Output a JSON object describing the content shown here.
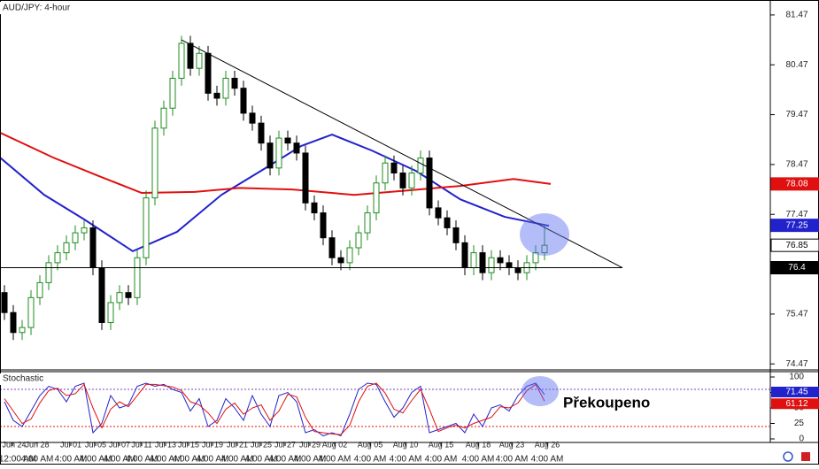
{
  "chart_data": {
    "type": "candlestick",
    "title": "AUD/JPY: 4-hour",
    "open": [
      75.9,
      75.5,
      75.1,
      75.2,
      75.8,
      76.1,
      76.5,
      76.7,
      76.9,
      77.1,
      77.2,
      76.4,
      75.3,
      75.7,
      75.9,
      75.8,
      76.6,
      77.8,
      79.2,
      79.6,
      80.2,
      80.9,
      80.4,
      80.7,
      79.9,
      79.8,
      80.2,
      80.0,
      79.5,
      79.3,
      78.9,
      78.4,
      79.0,
      78.9,
      78.7,
      77.7,
      77.5,
      77.0,
      76.6,
      76.5,
      76.8,
      77.1,
      77.5,
      78.1,
      78.5,
      78.3,
      78.0,
      78.3,
      78.6,
      77.6,
      77.4,
      77.2,
      76.9,
      76.4,
      76.7,
      76.3,
      76.6,
      76.5,
      76.4,
      76.3,
      76.5,
      76.7
    ],
    "high": [
      76.05,
      75.65,
      75.35,
      75.95,
      76.25,
      76.65,
      76.85,
      77.05,
      77.25,
      77.35,
      77.35,
      76.55,
      75.85,
      76.05,
      76.05,
      76.75,
      77.95,
      79.35,
      79.75,
      80.35,
      81.05,
      81.05,
      80.85,
      80.85,
      80.05,
      80.35,
      80.35,
      80.15,
      79.65,
      79.45,
      79.05,
      79.15,
      79.15,
      79.05,
      78.85,
      77.85,
      77.65,
      77.15,
      76.75,
      76.95,
      77.25,
      77.65,
      78.25,
      78.65,
      78.65,
      78.45,
      78.45,
      78.75,
      78.75,
      77.75,
      77.55,
      77.35,
      77.05,
      76.85,
      76.85,
      76.75,
      76.75,
      76.65,
      76.55,
      76.65,
      76.85,
      77.25
    ],
    "low": [
      75.35,
      74.95,
      74.95,
      75.05,
      75.65,
      75.95,
      76.35,
      76.55,
      76.75,
      76.95,
      76.25,
      75.15,
      75.15,
      75.55,
      75.65,
      75.65,
      76.45,
      77.65,
      79.05,
      79.45,
      80.05,
      80.25,
      80.25,
      79.75,
      79.65,
      79.65,
      79.85,
      79.35,
      79.15,
      78.75,
      78.25,
      78.25,
      78.75,
      78.55,
      77.55,
      77.35,
      76.85,
      76.45,
      76.35,
      76.35,
      76.65,
      76.95,
      77.35,
      77.95,
      78.15,
      77.85,
      77.85,
      78.15,
      77.45,
      77.25,
      77.05,
      76.75,
      76.25,
      76.25,
      76.15,
      76.15,
      76.35,
      76.25,
      76.15,
      76.15,
      76.35,
      76.55
    ],
    "close": [
      75.5,
      75.1,
      75.2,
      75.8,
      76.1,
      76.5,
      76.7,
      76.9,
      77.1,
      77.2,
      76.4,
      75.3,
      75.7,
      75.9,
      75.8,
      76.6,
      77.8,
      79.2,
      79.6,
      80.2,
      80.9,
      80.4,
      80.7,
      79.9,
      79.8,
      80.2,
      80.0,
      79.5,
      79.3,
      78.9,
      78.4,
      79.0,
      78.9,
      78.7,
      77.7,
      77.5,
      77.0,
      76.6,
      76.5,
      76.8,
      77.1,
      77.5,
      78.1,
      78.5,
      78.3,
      78.0,
      78.3,
      78.6,
      77.6,
      77.4,
      77.2,
      76.9,
      76.4,
      76.7,
      76.3,
      76.6,
      76.5,
      76.4,
      76.3,
      76.5,
      76.7,
      76.85
    ],
    "up_color": "#1e8c1e",
    "down_color": "#000000",
    "moving_averages": [
      {
        "color": "#2222cc",
        "x": [
          -0.5,
          4.5,
          9,
          14.5,
          19.5,
          24.5,
          29.5,
          33.5,
          37,
          41.5,
          46.5,
          51.5,
          56.5,
          61.5
        ],
        "values": [
          78.61,
          77.86,
          77.37,
          76.73,
          77.12,
          77.86,
          78.4,
          78.84,
          79.07,
          78.75,
          78.34,
          77.77,
          77.42,
          77.24
        ]
      },
      {
        "color": "#e01010",
        "x": [
          -0.5,
          5.5,
          10.5,
          15.5,
          21.5,
          26.5,
          32.5,
          39.5,
          45.5,
          51.5,
          57.5,
          61.7
        ],
        "values": [
          79.11,
          78.61,
          78.25,
          77.9,
          77.92,
          78.0,
          77.97,
          77.86,
          77.95,
          78.04,
          78.18,
          78.08
        ]
      }
    ],
    "trendline": {
      "x": [
        20,
        69.8
      ],
      "values": [
        80.97,
        76.4
      ]
    },
    "support": {
      "x": [
        -0.5,
        69.8
      ],
      "value": 76.4
    },
    "xlim": [
      -0.5,
      86.5
    ],
    "ylim": [
      74.35,
      81.77
    ],
    "yticks": [
      74.47,
      75.47,
      77.47,
      78.47,
      79.47,
      80.47,
      81.47
    ],
    "price_labels": [
      {
        "value": 78.08,
        "color": "#e01010"
      },
      {
        "value": 77.25,
        "color": "#2222cc"
      },
      {
        "value": 76.85,
        "color": "#ffffff"
      },
      {
        "value": 76.4,
        "color": "#000000"
      }
    ],
    "xticks": [
      {
        "value": 0.9,
        "label": "Jun 24"
      },
      {
        "value": 3.7,
        "label": "Jun 28"
      },
      {
        "value": 7.5,
        "label": "Jul 01"
      },
      {
        "value": 10.3,
        "label": "Jul 05"
      },
      {
        "value": 13,
        "label": "Jul 07"
      },
      {
        "value": 15.5,
        "label": "Jul 11"
      },
      {
        "value": 18.2,
        "label": "Jul 13"
      },
      {
        "value": 20.8,
        "label": "Jul 15"
      },
      {
        "value": 23.5,
        "label": "Jul 19"
      },
      {
        "value": 26.3,
        "label": "Jul 21"
      },
      {
        "value": 29,
        "label": "Jul 25"
      },
      {
        "value": 31.7,
        "label": "Jul 27"
      },
      {
        "value": 34.5,
        "label": "Jul 29"
      },
      {
        "value": 37.3,
        "label": "Aug 02"
      },
      {
        "value": 41.3,
        "label": "Aug 05"
      },
      {
        "value": 45.3,
        "label": "Aug 10"
      },
      {
        "value": 49.3,
        "label": "Aug 15"
      },
      {
        "value": 53.5,
        "label": "Aug 18"
      },
      {
        "value": 57.3,
        "label": "Aug 23"
      },
      {
        "value": 61.3,
        "label": "Aug 26"
      }
    ],
    "time_labels": [
      "12:00 AM",
      "4:00 AM",
      "4:00 AM",
      "4:00 AM",
      "4:00 AM",
      "4:00 AM",
      "4:00 AM",
      "4:00 AM",
      "4:00 AM",
      "4:00 AM",
      "4:00 AM",
      "4:00 AM",
      "4:00 AM",
      "4:00 AM",
      "4:00 AM",
      "4:00 AM",
      "4:00 AM",
      "4:00 AM",
      "4:00 AM",
      "4:00 AM"
    ],
    "stochastic": {
      "title": "Stochastic",
      "ylim": [
        -5.7,
        108.6
      ],
      "yticks": [
        0,
        25,
        50,
        75,
        100
      ],
      "levels": [
        {
          "value": 80,
          "color": "#7a3fbf"
        },
        {
          "value": 20,
          "color": "#e01010"
        }
      ],
      "series": [
        {
          "color": "#2222cc",
          "values": [
            60,
            30,
            20,
            45,
            70,
            85,
            80,
            60,
            85,
            90,
            10,
            25,
            70,
            50,
            55,
            85,
            90,
            85,
            88,
            80,
            75,
            45,
            65,
            20,
            30,
            65,
            50,
            30,
            70,
            40,
            20,
            70,
            75,
            60,
            10,
            15,
            5,
            10,
            5,
            40,
            80,
            90,
            88,
            60,
            35,
            50,
            75,
            85,
            10,
            15,
            20,
            25,
            10,
            40,
            20,
            50,
            55,
            45,
            70,
            85,
            90,
            71.45
          ]
        },
        {
          "color": "#e01010",
          "values": [
            65,
            45,
            25,
            32,
            58,
            78,
            82,
            70,
            73,
            88,
            50,
            18,
            48,
            60,
            52,
            70,
            88,
            88,
            86,
            84,
            78,
            60,
            55,
            42,
            25,
            48,
            58,
            40,
            50,
            55,
            30,
            45,
            72,
            68,
            35,
            12,
            10,
            8,
            7,
            22,
            60,
            85,
            90,
            74,
            48,
            42,
            62,
            80,
            48,
            12,
            18,
            22,
            18,
            25,
            30,
            35,
            52,
            50,
            58,
            78,
            88,
            61.12
          ]
        }
      ]
    },
    "annotation": "Překoupeno"
  }
}
